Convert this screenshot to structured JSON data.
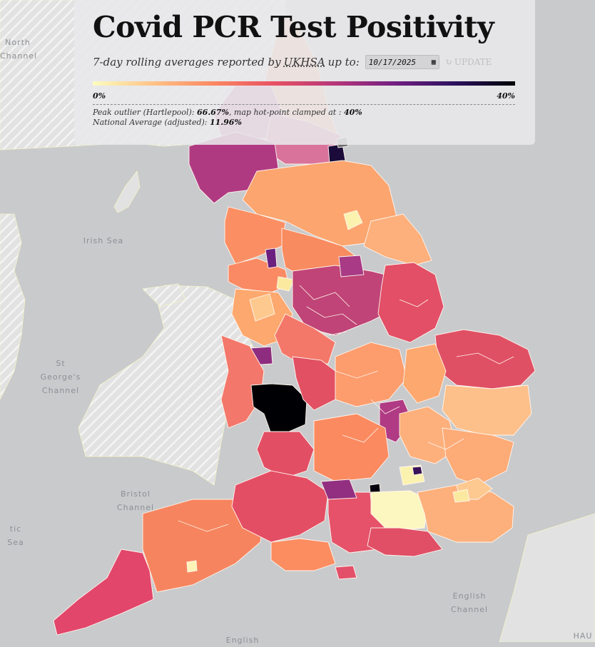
{
  "header": {
    "title": "Covid PCR Test Positivity",
    "subtitle_prefix": "7-day rolling averages reported by",
    "source_name": "UKHSA",
    "subtitle_suffix": "up to:",
    "date_value": "10/17/2025",
    "update_label": "UPDATE"
  },
  "legend": {
    "min_label": "0%",
    "max_label": "40%",
    "colors": [
      "#fcfdbf",
      "#fec287",
      "#fb8861",
      "#e75263",
      "#b73779",
      "#721f81",
      "#2c115f",
      "#000004"
    ]
  },
  "notes": {
    "peak_prefix": "Peak outlier (Hartlepool):",
    "peak_value": "66.67%",
    "clamp_text": ", map hot-point clamped at :",
    "clamp_value": "40%",
    "national_prefix": "National Average (adjusted):",
    "national_value": "11.96%"
  },
  "sea_labels": {
    "north_channel": "North\nChannel",
    "irish_sea": "Irish Sea",
    "st_georges": "St\nGeorge's\nChannel",
    "bristol": "Bristol\nChannel",
    "celtic": "tic Sea",
    "english_channel": "English\nChannel",
    "english_bottom": "English",
    "hau": "HAU"
  },
  "colors": {
    "sea": "#c9cacc",
    "land_other": "#dedede",
    "hatch": "#eeeeee",
    "outlier_grey": "#6e6e6e"
  }
}
